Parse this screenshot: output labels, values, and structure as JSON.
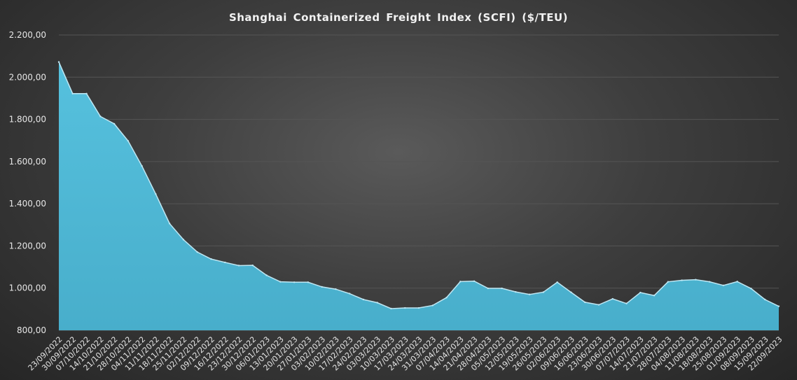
{
  "chart_data": {
    "type": "area",
    "title": "Shanghai  Containerized Freight Index  (SCFI) ($/TEU)",
    "xlabel": "",
    "ylabel": "",
    "ylim": [
      800,
      2200
    ],
    "yticks": [
      800,
      1000,
      1200,
      1400,
      1600,
      1800,
      2000,
      2200
    ],
    "ytick_labels": [
      "800,00",
      "1.000,00",
      "1.200,00",
      "1.400,00",
      "1.600,00",
      "1.800,00",
      "2.000,00",
      "2.200,00"
    ],
    "grid": true,
    "colors": {
      "area_fill": "#4eb8d6",
      "area_line": "#bfe7f3",
      "gridline": "#555555",
      "text": "#e6e6e6"
    },
    "x_tick_labels": [
      "23/09/2022",
      "30/09/2022",
      "07/10/2022",
      "14/10/2022",
      "21/10/2022",
      "28/10/2022",
      "04/11/2022",
      "11/11/2022",
      "18/11/2022",
      "25/11/2022",
      "02/12/2022",
      "09/12/2022",
      "16/12/2022",
      "23/12/2022",
      "30/12/2022",
      "06/01/2023",
      "13/01/2023",
      "20/01/2023",
      "27/01/2023",
      "03/02/2023",
      "10/02/2023",
      "17/02/2023",
      "24/02/2023",
      "03/03/2023",
      "10/03/2023",
      "17/03/2023",
      "24/03/2023",
      "31/03/2023",
      "07/04/2023",
      "14/04/2023",
      "21/04/2023",
      "28/04/2023",
      "05/05/2023",
      "12/05/2023",
      "19/05/2023",
      "26/05/2023",
      "02/06/2023",
      "09/06/2023",
      "16/06/2023",
      "23/06/2023",
      "30/06/2023",
      "07/07/2023",
      "14/07/2023",
      "21/07/2023",
      "28/07/2023",
      "04/08/2023",
      "11/08/2023",
      "18/08/2023",
      "25/08/2023",
      "01/09/2023",
      "08/09/2023",
      "15/09/2023",
      "22/09/2023"
    ],
    "x": [
      "23/09/2022",
      "30/09/2022",
      "07/10/2022",
      "14/10/2022",
      "21/10/2022",
      "28/10/2022",
      "04/11/2022",
      "11/11/2022",
      "18/11/2022",
      "25/11/2022",
      "02/12/2022",
      "09/12/2022",
      "16/12/2022",
      "23/12/2022",
      "30/12/2022",
      "06/01/2023",
      "13/01/2023",
      "20/01/2023",
      "27/01/2023",
      "03/02/2023",
      "10/02/2023",
      "17/02/2023",
      "24/02/2023",
      "03/03/2023",
      "10/03/2023",
      "17/03/2023",
      "24/03/2023",
      "31/03/2023",
      "07/04/2023",
      "14/04/2023",
      "21/04/2023",
      "28/04/2023",
      "05/05/2023",
      "12/05/2023",
      "19/05/2023",
      "26/05/2023",
      "02/06/2023",
      "09/06/2023",
      "16/06/2023",
      "23/06/2023",
      "30/06/2023",
      "07/07/2023",
      "14/07/2023",
      "21/07/2023",
      "28/07/2023",
      "04/08/2023",
      "11/08/2023",
      "18/08/2023",
      "25/08/2023",
      "01/09/2023",
      "08/09/2023",
      "15/09/2023",
      "22/09/2023"
    ],
    "values": [
      2072,
      1922,
      1922,
      1814,
      1779,
      1698,
      1579,
      1446,
      1306,
      1230,
      1171,
      1138,
      1122,
      1107,
      1108,
      1061,
      1030,
      1028,
      1028,
      1006,
      995,
      974,
      946,
      931,
      903,
      906,
      906,
      918,
      955,
      1031,
      1033,
      999,
      999,
      982,
      970,
      981,
      1028,
      980,
      933,
      921,
      949,
      927,
      979,
      965,
      1030,
      1037,
      1040,
      1030,
      1013,
      1031,
      998,
      946,
      914
    ]
  }
}
